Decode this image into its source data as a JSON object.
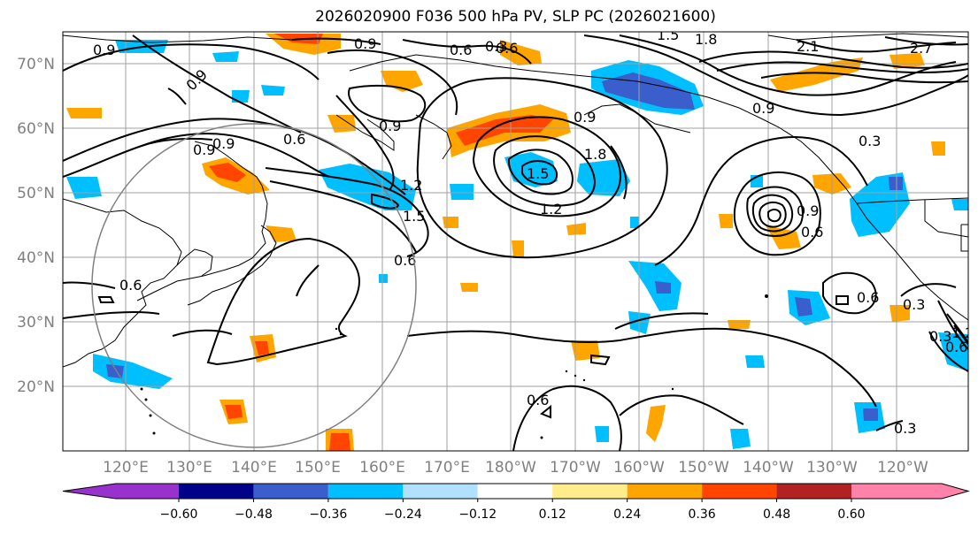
{
  "title": "2026020900 F036 500 hPa PV, SLP PC (2026021600)",
  "map": {
    "lat_labels": [
      "70°N",
      "60°N",
      "50°N",
      "40°N",
      "30°N",
      "20°N"
    ],
    "lon_labels": [
      "120°E",
      "130°E",
      "140°E",
      "150°E",
      "160°E",
      "170°E",
      "180°W",
      "170°W",
      "160°W",
      "150°W",
      "140°W",
      "130°W",
      "120°W"
    ],
    "extent": {
      "lon_min": 111.5,
      "lon_max": 244,
      "lat_min": 10,
      "lat_max": 75
    },
    "contour_labels": [
      "0.9",
      "0.9",
      "0.9",
      "0.6",
      "0.3",
      "0.9",
      "0.9",
      "0.9",
      "0.9",
      "0.6",
      "0.6",
      "0.3",
      "0.9",
      "1.2",
      "1.2",
      "1.5",
      "1.5",
      "1.8",
      "1.8",
      "2.1",
      "2.7",
      "0.6",
      "0.6",
      "0.6",
      "0.6",
      "1.2",
      "0.9",
      "0.3",
      "0.6",
      "0.3",
      "0.3",
      "0.6",
      "1.5"
    ],
    "colors": {
      "land_outline": "#000000",
      "grid": "#a0a0a0",
      "contour": "#000000",
      "circle": "#808080"
    }
  },
  "colorbar": {
    "ticks": [
      "−0.60",
      "−0.48",
      "−0.36",
      "−0.24",
      "−0.12",
      "0.12",
      "0.24",
      "0.36",
      "0.48",
      "0.60"
    ],
    "colors": [
      "#9932cc",
      "#00008b",
      "#3a5fcd",
      "#00bfff",
      "#b0e2ff",
      "#ffffff",
      "#ffec8b",
      "#ffa500",
      "#ff4500",
      "#b22222",
      "#ff82ab"
    ]
  }
}
